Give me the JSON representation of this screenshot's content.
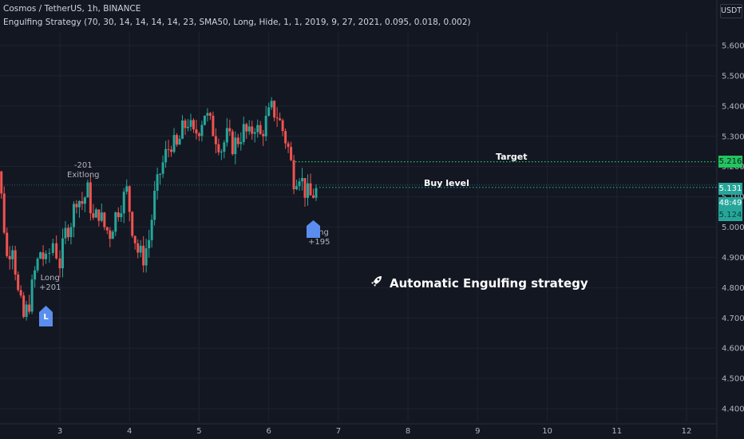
{
  "header": {
    "title": "Cosmos / TetherUS, 1h, BINANCE",
    "indicator": "Engulfing Strategy (70, 30, 14, 14, 14, 14, 23, SMA50, Long, Hide, 1, 1, 2019, 9, 27, 2021, 0.095, 0.018, 0.002)"
  },
  "currency": "USDT",
  "annotations": {
    "exit_value": "-201",
    "exit_label": "Exitlong",
    "long1_label": "Long",
    "long1_value": "+201",
    "long2_label": "Long",
    "long2_value": "+195",
    "marker1": "L",
    "target_label": "Target",
    "buy_label": "Buy level",
    "headline": "Automatic Engulfing strategy"
  },
  "price_tags": {
    "target": "5.216",
    "buy": "5.131",
    "countdown": "48:49",
    "last": "5.124"
  },
  "colors": {
    "up": "#26a69a",
    "down": "#ef5350",
    "target_tag": "#22c55e",
    "buy_tag": "#26a69a",
    "marker": "#5b8def"
  },
  "chart_data": {
    "type": "candlestick",
    "x_ticks": [
      "3",
      "4",
      "5",
      "6",
      "7",
      "8",
      "9",
      "10",
      "11",
      "12"
    ],
    "y_ticks": [
      "4.400",
      "4.500",
      "4.600",
      "4.700",
      "4.800",
      "4.900",
      "5.000",
      "5.100",
      "5.200",
      "5.300",
      "5.400",
      "5.500",
      "5.600"
    ],
    "ylim": [
      4.37,
      5.76
    ],
    "xlim": [
      2.0,
      12.6
    ],
    "target_level": 5.216,
    "buy_level": 5.131,
    "last_price": 5.124,
    "ohlc_path": [
      [
        2.0,
        5.15
      ],
      [
        2.08,
        5.28
      ],
      [
        2.16,
        5.1
      ],
      [
        2.24,
        4.9
      ],
      [
        2.32,
        4.95
      ],
      [
        2.4,
        4.78
      ],
      [
        2.48,
        4.7
      ],
      [
        2.56,
        4.75
      ],
      [
        2.64,
        4.85
      ],
      [
        2.72,
        4.92
      ],
      [
        2.8,
        4.88
      ],
      [
        2.9,
        4.95
      ],
      [
        3.0,
        4.88
      ],
      [
        3.08,
        4.98
      ],
      [
        3.16,
        5.02
      ],
      [
        3.24,
        5.1
      ],
      [
        3.32,
        5.08
      ],
      [
        3.4,
        5.12
      ],
      [
        3.48,
        5.02
      ],
      [
        3.56,
        5.05
      ],
      [
        3.64,
        5.0
      ],
      [
        3.72,
        4.98
      ],
      [
        3.8,
        5.04
      ],
      [
        3.88,
        5.08
      ],
      [
        3.96,
        5.12
      ],
      [
        4.04,
        5.0
      ],
      [
        4.12,
        4.92
      ],
      [
        4.2,
        4.9
      ],
      [
        4.28,
        4.96
      ],
      [
        4.36,
        5.1
      ],
      [
        4.44,
        5.18
      ],
      [
        4.52,
        5.24
      ],
      [
        4.6,
        5.28
      ],
      [
        4.68,
        5.26
      ],
      [
        4.76,
        5.32
      ],
      [
        4.84,
        5.35
      ],
      [
        4.92,
        5.3
      ],
      [
        5.0,
        5.33
      ],
      [
        5.08,
        5.38
      ],
      [
        5.16,
        5.34
      ],
      [
        5.24,
        5.3
      ],
      [
        5.32,
        5.26
      ],
      [
        5.4,
        5.3
      ],
      [
        5.48,
        5.27
      ],
      [
        5.56,
        5.29
      ],
      [
        5.64,
        5.32
      ],
      [
        5.72,
        5.3
      ],
      [
        5.8,
        5.34
      ],
      [
        5.88,
        5.3
      ],
      [
        5.96,
        5.35
      ],
      [
        6.04,
        5.39
      ],
      [
        6.12,
        5.37
      ],
      [
        6.2,
        5.32
      ],
      [
        6.28,
        5.26
      ],
      [
        6.36,
        5.16
      ],
      [
        6.44,
        5.18
      ],
      [
        6.52,
        5.12
      ],
      [
        6.6,
        5.1
      ],
      [
        6.68,
        5.12
      ]
    ]
  }
}
